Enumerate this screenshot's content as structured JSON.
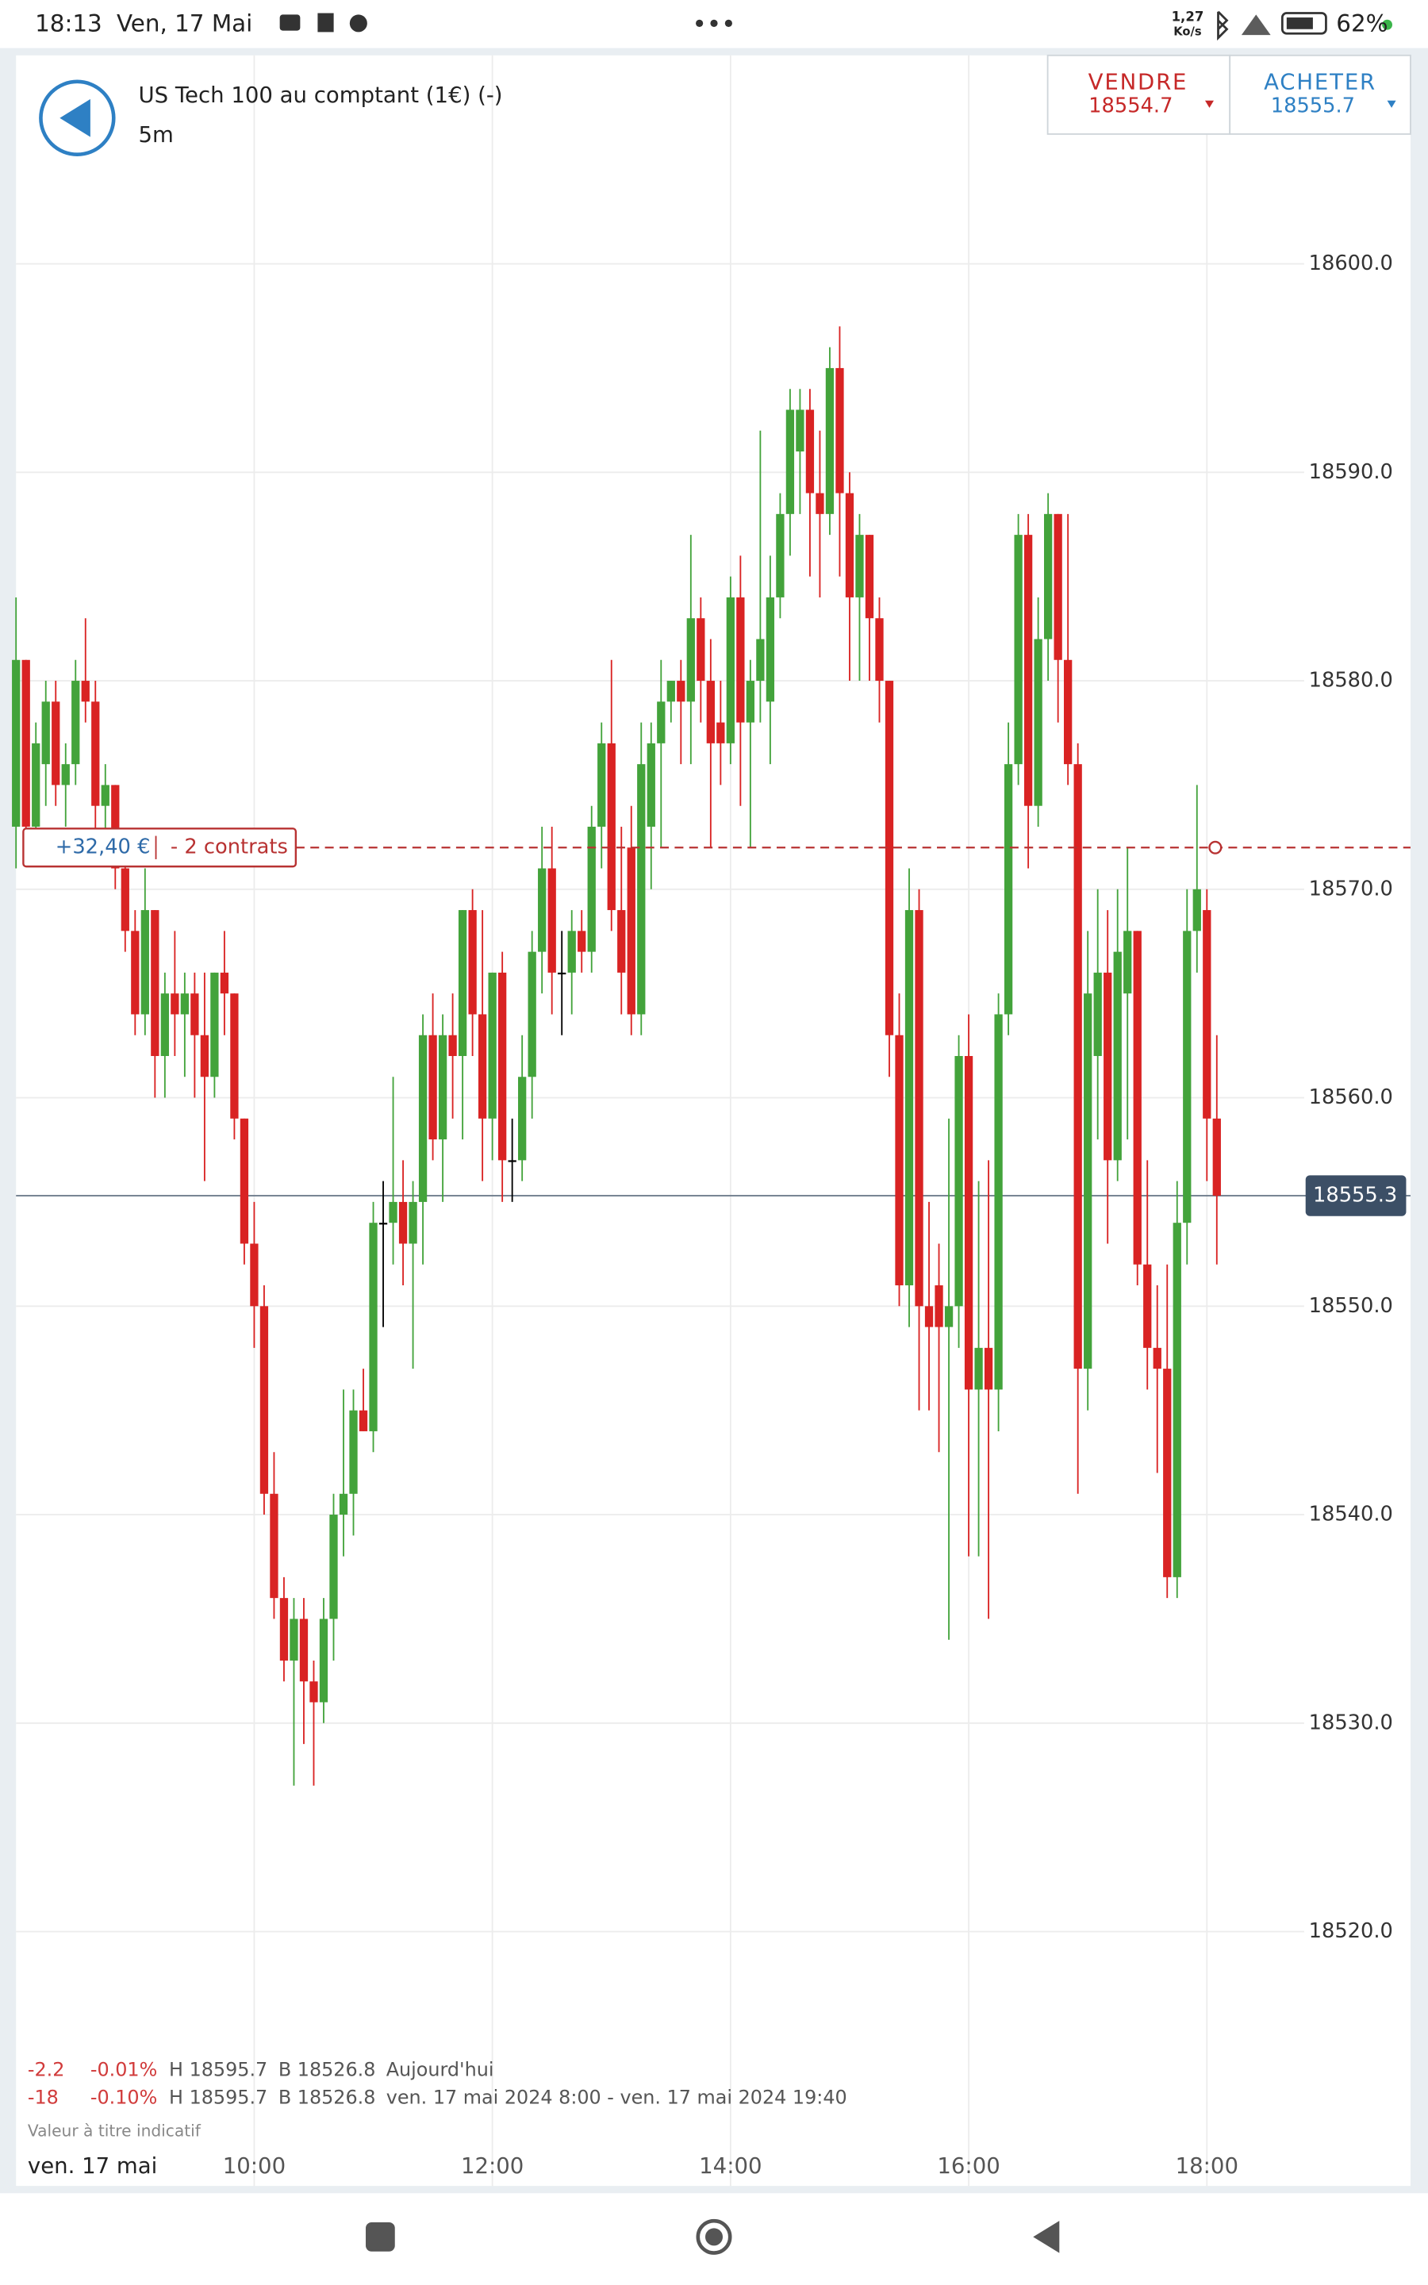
{
  "status_bar": {
    "time": "18:13",
    "date": "Ven, 17 Mai",
    "speed": "1,27",
    "speed_unit": "Ko/s",
    "battery": "62%"
  },
  "header": {
    "instrument": "US Tech 100 au comptant (1€) (-)",
    "interval": "5m"
  },
  "sell": {
    "label": "VENDRE",
    "price": "18554.7"
  },
  "buy": {
    "label": "ACHETER",
    "price": "18555.7"
  },
  "chart_data": {
    "type": "candlestick",
    "up_color": "#43a33b",
    "down_color": "#d92323",
    "doji_color": "#000000",
    "grid": true,
    "ylim": [
      18515,
      18610
    ],
    "yticks": [
      {
        "value": 18520,
        "label": "18520.0"
      },
      {
        "value": 18530,
        "label": "18530.0"
      },
      {
        "value": 18540,
        "label": "18540.0"
      },
      {
        "value": 18550,
        "label": "18550.0"
      },
      {
        "value": 18560,
        "label": "18560.0"
      },
      {
        "value": 18570,
        "label": "18570.0"
      },
      {
        "value": 18580,
        "label": "18580.0"
      },
      {
        "value": 18590,
        "label": "18590.0"
      },
      {
        "value": 18600,
        "label": "18600.0"
      }
    ],
    "xlim": [
      480,
      1129
    ],
    "xticks": [
      {
        "value": 600,
        "label": "10:00"
      },
      {
        "value": 720,
        "label": "12:00"
      },
      {
        "value": 840,
        "label": "14:00"
      },
      {
        "value": 960,
        "label": "16:00"
      },
      {
        "value": 1080,
        "label": "18:00"
      }
    ],
    "date_label": "ven. 17 mai",
    "last_price": 18555.3,
    "position": {
      "value": 18572,
      "pl": "+32,40 €",
      "size": "- 2 contrats",
      "color": "#b83232"
    },
    "x": [
      480,
      485,
      490,
      495,
      500,
      505,
      510,
      515,
      520,
      525,
      530,
      535,
      540,
      545,
      550,
      555,
      560,
      565,
      570,
      575,
      580,
      585,
      590,
      595,
      600,
      605,
      610,
      615,
      620,
      625,
      630,
      635,
      640,
      645,
      650,
      655,
      660,
      665,
      670,
      675,
      680,
      685,
      690,
      695,
      700,
      705,
      710,
      715,
      720,
      725,
      730,
      735,
      740,
      745,
      750,
      755,
      760,
      765,
      770,
      775,
      780,
      785,
      790,
      795,
      800,
      805,
      810,
      815,
      820,
      825,
      830,
      835,
      840,
      845,
      850,
      855,
      860,
      865,
      870,
      875,
      880,
      885,
      890,
      895,
      900,
      905,
      910,
      915,
      920,
      925,
      930,
      935,
      940,
      945,
      950,
      955,
      960,
      965,
      970,
      975,
      980,
      985,
      990,
      995,
      1000,
      1005,
      1010,
      1015,
      1020,
      1025,
      1030,
      1035,
      1040,
      1045,
      1050,
      1055,
      1060,
      1065,
      1070,
      1075,
      1080,
      1085
    ],
    "candles": [
      [
        18573,
        18584,
        18571,
        18581
      ],
      [
        18581,
        18581,
        18572,
        18573
      ],
      [
        18573,
        18578,
        18572,
        18577
      ],
      [
        18576,
        18580,
        18574,
        18579
      ],
      [
        18579,
        18580,
        18574,
        18575
      ],
      [
        18575,
        18577,
        18573,
        18576
      ],
      [
        18576,
        18581,
        18575,
        18580
      ],
      [
        18580,
        18583,
        18578,
        18579
      ],
      [
        18579,
        18580,
        18572,
        18574
      ],
      [
        18574,
        18576,
        18572,
        18575
      ],
      [
        18575,
        18575,
        18570,
        18571
      ],
      [
        18571,
        18572,
        18567,
        18568
      ],
      [
        18568,
        18569,
        18563,
        18564
      ],
      [
        18564,
        18571,
        18563,
        18569
      ],
      [
        18569,
        18569,
        18560,
        18562
      ],
      [
        18562,
        18566,
        18560,
        18565
      ],
      [
        18565,
        18568,
        18562,
        18564
      ],
      [
        18564,
        18566,
        18561,
        18565
      ],
      [
        18565,
        18566,
        18560,
        18563
      ],
      [
        18563,
        18566,
        18556,
        18561
      ],
      [
        18561,
        18566,
        18560,
        18566
      ],
      [
        18566,
        18568,
        18563,
        18565
      ],
      [
        18565,
        18565,
        18558,
        18559
      ],
      [
        18559,
        18559,
        18552,
        18553
      ],
      [
        18553,
        18555,
        18548,
        18550
      ],
      [
        18550,
        18551,
        18540,
        18541
      ],
      [
        18541,
        18543,
        18535,
        18536
      ],
      [
        18536,
        18537,
        18532,
        18533
      ],
      [
        18533,
        18536,
        18527,
        18535
      ],
      [
        18535,
        18536,
        18529,
        18532
      ],
      [
        18532,
        18533,
        18527,
        18531
      ],
      [
        18531,
        18536,
        18530,
        18535
      ],
      [
        18535,
        18541,
        18533,
        18540
      ],
      [
        18540,
        18546,
        18538,
        18541
      ],
      [
        18541,
        18546,
        18539,
        18545
      ],
      [
        18545,
        18547,
        18544,
        18544
      ],
      [
        18544,
        18555,
        18543,
        18554
      ],
      [
        18554,
        18556,
        18549,
        18554
      ],
      [
        18554,
        18561,
        18552,
        18555
      ],
      [
        18555,
        18557,
        18551,
        18553
      ],
      [
        18553,
        18556,
        18547,
        18555
      ],
      [
        18555,
        18564,
        18552,
        18563
      ],
      [
        18563,
        18565,
        18557,
        18558
      ],
      [
        18558,
        18564,
        18555,
        18563
      ],
      [
        18563,
        18565,
        18559,
        18562
      ],
      [
        18562,
        18569,
        18558,
        18569
      ],
      [
        18569,
        18570,
        18562,
        18564
      ],
      [
        18564,
        18569,
        18556,
        18559
      ],
      [
        18559,
        18566,
        18557,
        18566
      ],
      [
        18566,
        18567,
        18555,
        18557
      ],
      [
        18557,
        18559,
        18555,
        18557
      ],
      [
        18557,
        18563,
        18556,
        18561
      ],
      [
        18561,
        18568,
        18559,
        18567
      ],
      [
        18567,
        18573,
        18565,
        18571
      ],
      [
        18571,
        18573,
        18564,
        18566
      ],
      [
        18566,
        18568,
        18563,
        18566
      ],
      [
        18566,
        18569,
        18564,
        18568
      ],
      [
        18568,
        18569,
        18566,
        18567
      ],
      [
        18567,
        18574,
        18566,
        18573
      ],
      [
        18573,
        18578,
        18571,
        18577
      ],
      [
        18577,
        18581,
        18568,
        18569
      ],
      [
        18569,
        18573,
        18564,
        18566
      ],
      [
        18572,
        18574,
        18563,
        18564
      ],
      [
        18564,
        18578,
        18563,
        18576
      ],
      [
        18573,
        18578,
        18570,
        18577
      ],
      [
        18577,
        18581,
        18572,
        18579
      ],
      [
        18579,
        18580,
        18578,
        18580
      ],
      [
        18580,
        18581,
        18576,
        18579
      ],
      [
        18579,
        18587,
        18576,
        18583
      ],
      [
        18583,
        18584,
        18578,
        18580
      ],
      [
        18580,
        18582,
        18572,
        18577
      ],
      [
        18578,
        18580,
        18575,
        18577
      ],
      [
        18577,
        18585,
        18576,
        18584
      ],
      [
        18584,
        18586,
        18574,
        18578
      ],
      [
        18578,
        18581,
        18572,
        18580
      ],
      [
        18580,
        18592,
        18578,
        18582
      ],
      [
        18579,
        18586,
        18576,
        18584
      ],
      [
        18584,
        18589,
        18583,
        18588
      ],
      [
        18588,
        18594,
        18586,
        18593
      ],
      [
        18591,
        18594,
        18588,
        18593
      ],
      [
        18593,
        18594,
        18585,
        18589
      ],
      [
        18589,
        18592,
        18584,
        18588
      ],
      [
        18588,
        18596,
        18587,
        18595
      ],
      [
        18595,
        18597,
        18585,
        18589
      ],
      [
        18589,
        18590,
        18580,
        18584
      ],
      [
        18584,
        18588,
        18580,
        18587
      ],
      [
        18587,
        18587,
        18580,
        18583
      ],
      [
        18583,
        18584,
        18578,
        18580
      ],
      [
        18580,
        18580,
        18561,
        18563
      ],
      [
        18563,
        18565,
        18550,
        18551
      ],
      [
        18551,
        18571,
        18549,
        18569
      ],
      [
        18569,
        18570,
        18545,
        18550
      ],
      [
        18550,
        18555,
        18545,
        18549
      ],
      [
        18551,
        18553,
        18543,
        18549
      ],
      [
        18549,
        18559,
        18534,
        18550
      ],
      [
        18550,
        18563,
        18548,
        18562
      ],
      [
        18562,
        18564,
        18538,
        18546
      ],
      [
        18546,
        18556,
        18538,
        18548
      ],
      [
        18548,
        18557,
        18535,
        18546
      ],
      [
        18546,
        18565,
        18544,
        18564
      ],
      [
        18564,
        18578,
        18563,
        18576
      ],
      [
        18576,
        18588,
        18575,
        18587
      ],
      [
        18587,
        18588,
        18571,
        18574
      ],
      [
        18574,
        18584,
        18573,
        18582
      ],
      [
        18582,
        18589,
        18580,
        18588
      ],
      [
        18588,
        18588,
        18578,
        18581
      ],
      [
        18581,
        18588,
        18575,
        18576
      ],
      [
        18576,
        18577,
        18541,
        18547
      ],
      [
        18547,
        18568,
        18545,
        18565
      ],
      [
        18562,
        18570,
        18558,
        18566
      ],
      [
        18566,
        18569,
        18553,
        18557
      ],
      [
        18557,
        18570,
        18556,
        18567
      ],
      [
        18565,
        18572,
        18558,
        18568
      ],
      [
        18568,
        18568,
        18551,
        18552
      ],
      [
        18552,
        18557,
        18546,
        18548
      ],
      [
        18548,
        18551,
        18542,
        18547
      ],
      [
        18547,
        18552,
        18536,
        18537
      ],
      [
        18537,
        18556,
        18536,
        18554
      ],
      [
        18554,
        18570,
        18552,
        18568
      ],
      [
        18568,
        18575,
        18566,
        18570
      ],
      [
        18569,
        18570,
        18556,
        18559
      ],
      [
        18559,
        18563,
        18552,
        18555.3
      ]
    ],
    "stats": [
      [
        "-2.2",
        "-0.01%",
        "H 18595.7",
        "B 18526.8",
        "Aujourd'hui"
      ],
      [
        "-18",
        "-0.10%",
        "H 18595.7",
        "B 18526.8",
        "ven. 17 mai 2024 8:00 - ven. 17 mai 2024 19:40"
      ]
    ],
    "note": "Valeur à titre indicatif"
  }
}
